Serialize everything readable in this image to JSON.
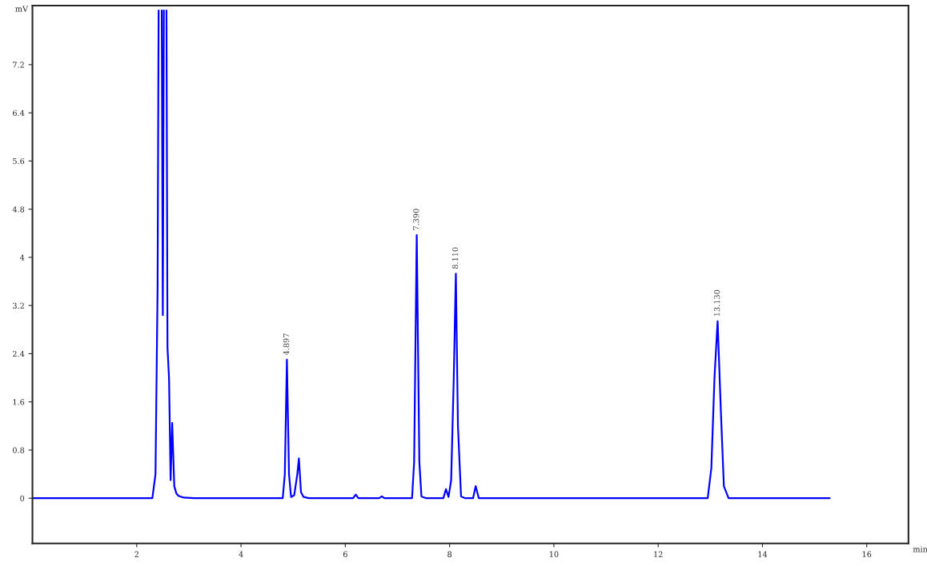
{
  "chart_data": {
    "type": "line",
    "xlabel": "min",
    "ylabel": "mV",
    "x": [
      0,
      2.3,
      2.36,
      2.4,
      2.42,
      2.45,
      2.48,
      2.5,
      2.52,
      2.55,
      2.57,
      2.59,
      2.62,
      2.65,
      2.68,
      2.72,
      2.76,
      2.8,
      2.9,
      3.1,
      4.8,
      4.84,
      4.88,
      4.92,
      4.96,
      5.02,
      5.08,
      5.11,
      5.15,
      5.2,
      5.3,
      6.15,
      6.2,
      6.25,
      6.65,
      6.7,
      6.75,
      7.28,
      7.32,
      7.37,
      7.42,
      7.46,
      7.55,
      7.88,
      7.93,
      7.98,
      8.03,
      8.08,
      8.12,
      8.16,
      8.22,
      8.3,
      8.45,
      8.5,
      8.56,
      8.7,
      12.95,
      13.02,
      13.08,
      13.14,
      13.2,
      13.26,
      13.35,
      15.29
    ],
    "series": [
      {
        "color": "#0000ff",
        "values": [
          0,
          0,
          0.4,
          3.5,
          8.1,
          null,
          8.1,
          3.04,
          8.1,
          null,
          8.1,
          2.5,
          1.98,
          0.3,
          1.25,
          0.2,
          0.08,
          0.04,
          0.01,
          0,
          0,
          0.4,
          2.3,
          0.4,
          0.02,
          0.05,
          0.4,
          0.66,
          0.1,
          0.02,
          0,
          0,
          0.06,
          0,
          0,
          0.03,
          0,
          0,
          0.6,
          4.37,
          0.6,
          0.03,
          0,
          0,
          0.15,
          0.02,
          0.3,
          2.0,
          3.73,
          1.2,
          0.03,
          0,
          0,
          0.2,
          0,
          0,
          0,
          0.5,
          2.0,
          2.94,
          1.5,
          0.2,
          0,
          0
        ]
      }
    ],
    "xlim": [
      0,
      16.8
    ],
    "ylim": [
      -0.75,
      8.18
    ],
    "xticks": [
      2,
      4,
      6,
      8,
      10,
      12,
      14,
      16
    ],
    "yticks": [
      0,
      0.8,
      1.6,
      2.4,
      3.2,
      4,
      4.8,
      5.6,
      6.4,
      7.2
    ],
    "annotations": [
      {
        "text": "4.897",
        "x": 4.88,
        "y": 2.3
      },
      {
        "text": "7.390",
        "x": 7.37,
        "y": 4.37
      },
      {
        "text": "8.110",
        "x": 8.12,
        "y": 3.73
      },
      {
        "text": "13.130",
        "x": 13.14,
        "y": 2.94
      }
    ],
    "grid": false,
    "legend": false,
    "line_style": "solid",
    "marker": "none"
  }
}
